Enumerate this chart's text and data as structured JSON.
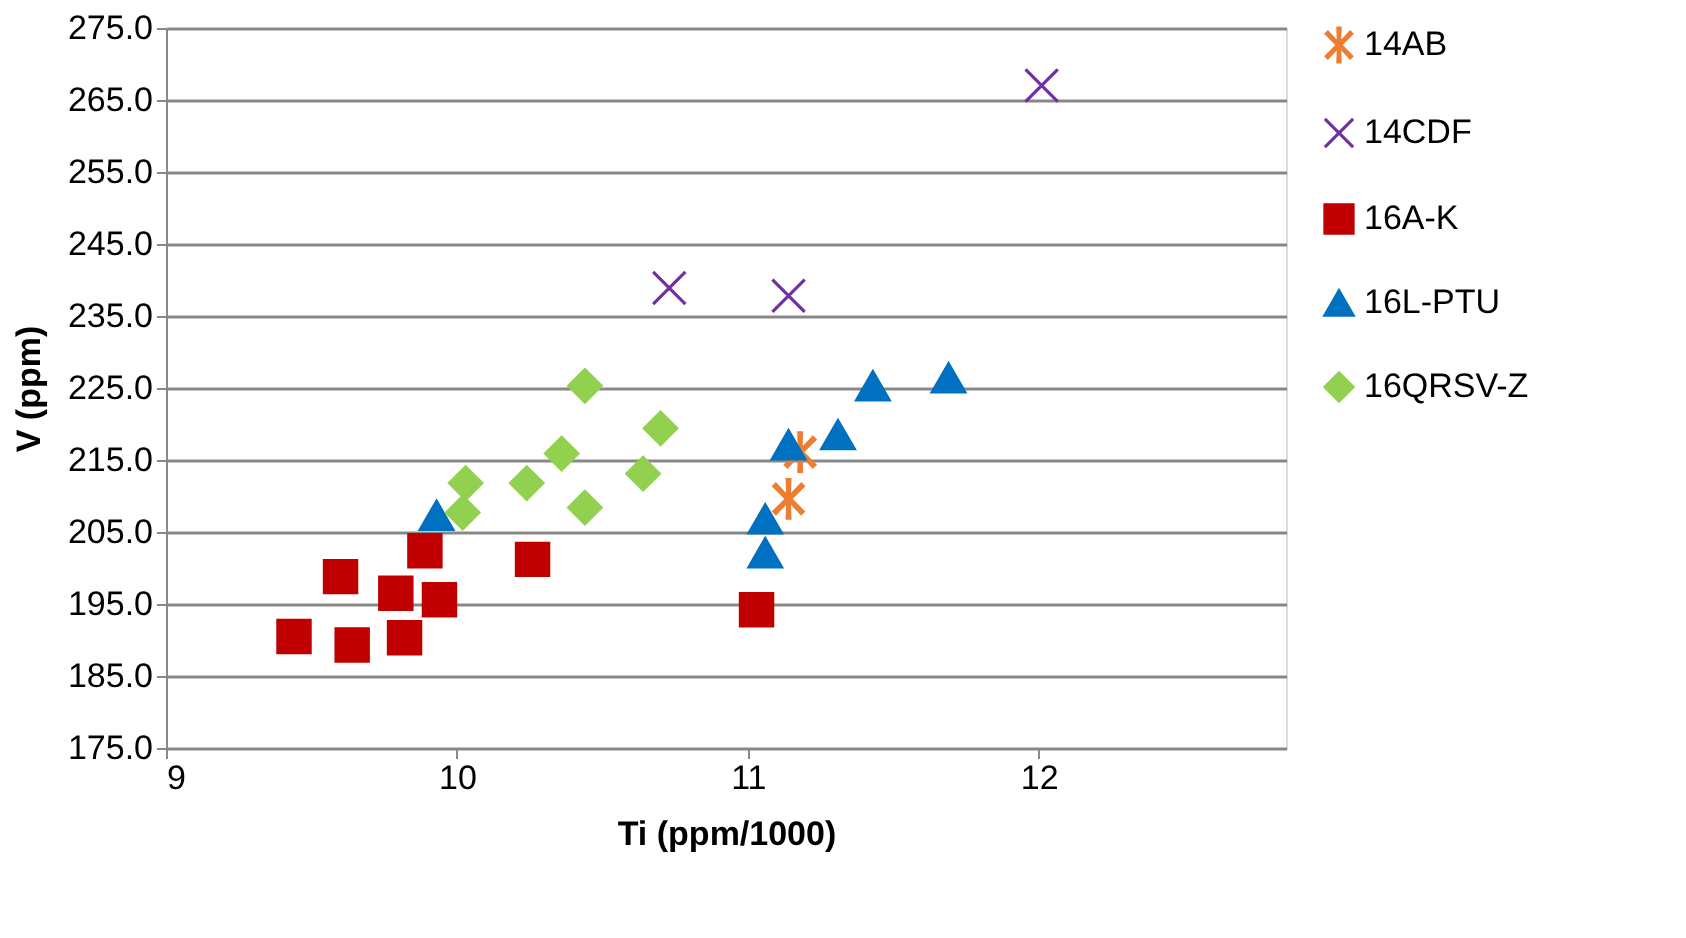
{
  "chart_data": {
    "type": "scatter",
    "xlabel": "Ti (ppm/1000)",
    "ylabel": "V (ppm)",
    "xlim": [
      9,
      12.85
    ],
    "xticks": [
      9,
      10,
      11,
      12
    ],
    "ylim": [
      175,
      275
    ],
    "yticks": [
      {
        "value": 175,
        "label": "175.0"
      },
      {
        "value": 185,
        "label": "185.0"
      },
      {
        "value": 195,
        "label": "195.0"
      },
      {
        "value": 205,
        "label": "205.0"
      },
      {
        "value": 215,
        "label": "215.0"
      },
      {
        "value": 225,
        "label": "225.0"
      },
      {
        "value": 235,
        "label": "235.0"
      },
      {
        "value": 245,
        "label": "245.0"
      },
      {
        "value": 255,
        "label": "255.0"
      },
      {
        "value": 265,
        "label": "265.0"
      },
      {
        "value": 275,
        "label": "275.0"
      }
    ],
    "grid": "y",
    "legend": "right",
    "series": [
      {
        "name": "14AB",
        "color": "#ed7d31",
        "marker": "star",
        "x": [
          11.14,
          11.18
        ],
        "values": [
          209.6,
          216.1
        ]
      },
      {
        "name": "14CDF",
        "color": "#7030a0",
        "marker": "cross",
        "x": [
          10.73,
          11.14,
          12.01
        ],
        "values": [
          238.9,
          237.8,
          267.0
        ]
      },
      {
        "name": "16A-K",
        "color": "#c00000",
        "marker": "square",
        "x": [
          9.44,
          9.6,
          9.64,
          9.82,
          9.89,
          9.94,
          9.79,
          10.26,
          11.03
        ],
        "values": [
          190.5,
          198.8,
          189.3,
          190.3,
          202.4,
          195.6,
          196.5,
          201.2,
          194.2
        ]
      },
      {
        "name": "16L-PTU",
        "color": "#0070c0",
        "marker": "triangle",
        "x": [
          9.93,
          11.06,
          11.06,
          11.14,
          11.31,
          11.43,
          11.69
        ],
        "values": [
          207.3,
          206.8,
          202.1,
          217.1,
          218.5,
          225.3,
          226.4
        ]
      },
      {
        "name": "16QRSV-Z",
        "color": "#92d050",
        "marker": "diamond",
        "x": [
          10.03,
          10.02,
          10.24,
          10.36,
          10.44,
          10.44,
          10.64,
          10.7
        ],
        "values": [
          211.8,
          207.7,
          211.8,
          215.9,
          225.3,
          208.4,
          213.1,
          219.4
        ]
      }
    ]
  }
}
